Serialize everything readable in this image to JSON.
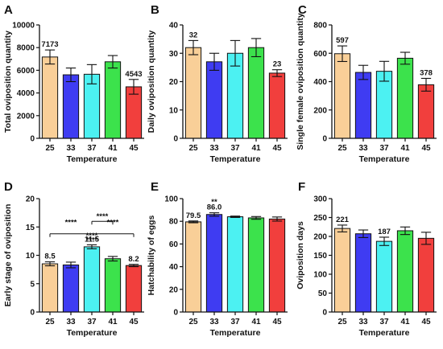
{
  "colors": [
    "#F9CF98",
    "#3F3CF2",
    "#4CF1F2",
    "#3CE24C",
    "#F13F3D"
  ],
  "chart_data": [
    {
      "panel": "A",
      "type": "bar",
      "title": "",
      "xlabel": "Temperature",
      "ylabel": "Total oviposition quantity",
      "categories": [
        "25",
        "33",
        "37",
        "41",
        "45"
      ],
      "values": [
        7173,
        5600,
        5650,
        6750,
        4543
      ],
      "errors": [
        620,
        600,
        850,
        550,
        650
      ],
      "ylim": [
        0,
        10000
      ],
      "yticks": [
        "0",
        "2000",
        "4000",
        "6000",
        "8000",
        "10000"
      ],
      "labels": [
        "7173",
        "",
        "",
        "",
        "4543"
      ],
      "significance": []
    },
    {
      "panel": "B",
      "type": "bar",
      "title": "",
      "xlabel": "Temperature",
      "ylabel": "Daily oviposition quantity",
      "categories": [
        "25",
        "33",
        "37",
        "41",
        "45"
      ],
      "values": [
        32,
        27,
        30,
        32,
        23
      ],
      "errors": [
        2.5,
        3,
        4.5,
        3.2,
        1.2
      ],
      "ylim": [
        0,
        40
      ],
      "yticks": [
        "0",
        "10",
        "20",
        "30",
        "40"
      ],
      "labels": [
        "32",
        "",
        "",
        "",
        "23"
      ],
      "significance": []
    },
    {
      "panel": "C",
      "type": "bar",
      "title": "",
      "xlabel": "Temperature",
      "ylabel": "Single female oviposition quantity",
      "categories": [
        "25",
        "33",
        "37",
        "41",
        "45"
      ],
      "values": [
        597,
        465,
        473,
        565,
        378
      ],
      "errors": [
        55,
        50,
        70,
        42,
        45
      ],
      "ylim": [
        0,
        800
      ],
      "yticks": [
        "0",
        "200",
        "400",
        "600",
        "800"
      ],
      "labels": [
        "597",
        "",
        "",
        "",
        "378"
      ],
      "significance": []
    },
    {
      "panel": "D",
      "type": "bar",
      "title": "",
      "xlabel": "Temperature",
      "ylabel": "Early stage of oviposition",
      "categories": [
        "25",
        "33",
        "37",
        "41",
        "45"
      ],
      "values": [
        8.5,
        8.3,
        11.5,
        9.4,
        8.2
      ],
      "errors": [
        0.35,
        0.5,
        0.35,
        0.4,
        0.2
      ],
      "ylim": [
        0,
        20
      ],
      "yticks": [
        "0",
        "5",
        "10",
        "15",
        "20"
      ],
      "labels": [
        "8.5",
        "",
        "11.5",
        "",
        "8.2"
      ],
      "significance": [
        {
          "text": "****",
          "from": 0,
          "to": 4,
          "level": 13.8,
          "stars_at": 2,
          "stars_above": false
        },
        {
          "text": "****",
          "from": 2,
          "to": 3,
          "level": 16.0,
          "stars_at": 2.5,
          "stars_above": true
        },
        {
          "text": "****",
          "from": null,
          "to": null,
          "level": 12.6,
          "stars_at": 2,
          "stars_above": true
        },
        {
          "text": "****",
          "from": null,
          "to": null,
          "level": 15.0,
          "stars_at": 1,
          "stars_above": true
        },
        {
          "text": "****",
          "from": null,
          "to": null,
          "level": 15.0,
          "stars_at": 3,
          "stars_above": true
        }
      ]
    },
    {
      "panel": "E",
      "type": "bar",
      "title": "",
      "xlabel": "Temperature",
      "ylabel": "Hatchability of eggs",
      "categories": [
        "25",
        "33",
        "37",
        "41",
        "45"
      ],
      "values": [
        79.5,
        86.0,
        84,
        83,
        82
      ],
      "errors": [
        0.8,
        1.5,
        0.6,
        1.2,
        1.8
      ],
      "ylim": [
        0,
        100
      ],
      "yticks": [
        "0",
        "20",
        "40",
        "60",
        "80",
        "100"
      ],
      "labels": [
        "79.5",
        "86.0",
        "",
        "",
        ""
      ],
      "significance": [
        {
          "text": "**",
          "from": null,
          "to": null,
          "level": 93,
          "stars_at": 1,
          "stars_above": true
        }
      ]
    },
    {
      "panel": "F",
      "type": "bar",
      "title": "",
      "xlabel": "Temperature",
      "ylabel": "Oviposition days",
      "categories": [
        "25",
        "33",
        "37",
        "41",
        "45"
      ],
      "values": [
        221,
        207,
        187,
        215,
        195
      ],
      "errors": [
        9,
        10,
        11,
        10,
        16
      ],
      "ylim": [
        0,
        300
      ],
      "yticks": [
        "0",
        "50",
        "100",
        "150",
        "200",
        "250",
        "300"
      ],
      "labels": [
        "221",
        "",
        "187",
        "",
        ""
      ],
      "significance": []
    }
  ]
}
